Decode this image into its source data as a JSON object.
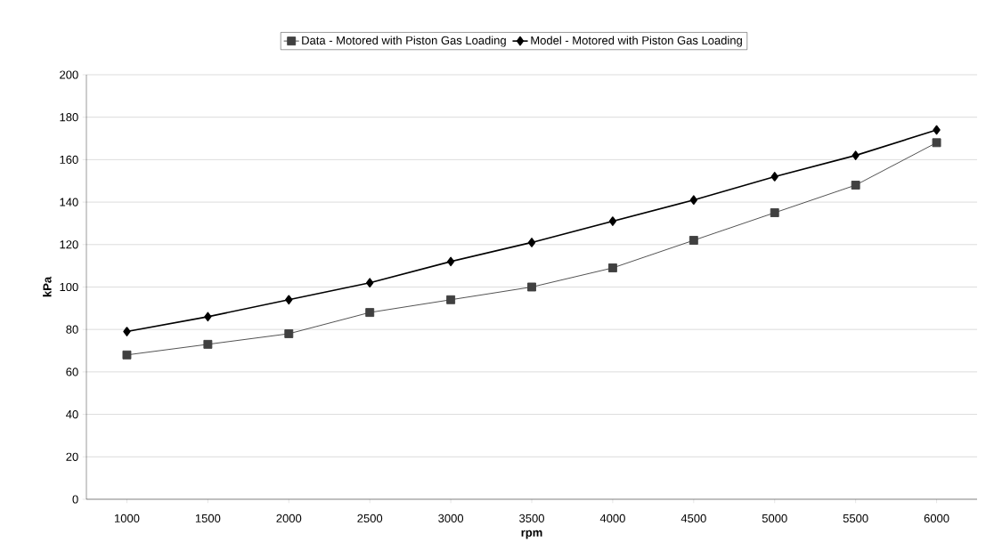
{
  "chart_data": {
    "type": "line",
    "xlabel": "rpm",
    "ylabel": "kPa",
    "categories": [
      "1000",
      "1500",
      "2000",
      "2500",
      "3000",
      "3500",
      "4000",
      "4500",
      "5000",
      "5500",
      "6000"
    ],
    "series": [
      {
        "name": "Data - Motored with Piston Gas Loading",
        "color": "#404040",
        "marker": "square",
        "values": [
          68,
          73,
          78,
          88,
          94,
          100,
          109,
          122,
          135,
          148,
          168
        ]
      },
      {
        "name": "Model - Motored with Piston Gas Loading",
        "color": "#000000",
        "marker": "diamond",
        "values": [
          79,
          86,
          94,
          102,
          112,
          121,
          131,
          141,
          152,
          162,
          174
        ]
      }
    ],
    "ylim": [
      0,
      200
    ],
    "yticks": [
      0,
      20,
      40,
      60,
      80,
      100,
      120,
      140,
      160,
      180,
      200
    ],
    "grid": "y",
    "legend": "top",
    "line_style": "solid"
  }
}
